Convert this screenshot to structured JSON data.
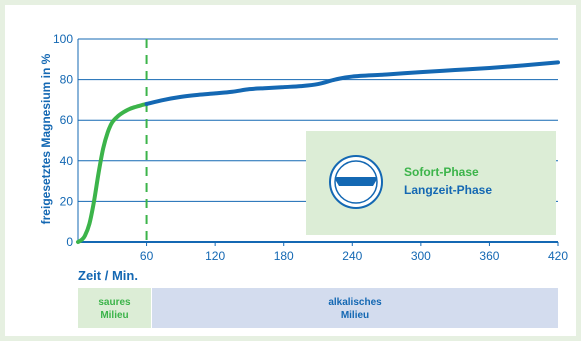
{
  "chart_data": {
    "type": "line",
    "ylabel": "freigesetztes Magnesium in %",
    "xlabel": "Zeit / Min.",
    "xlim": [
      0,
      420
    ],
    "ylim": [
      0,
      100
    ],
    "xticks": [
      "60",
      "120",
      "180",
      "240",
      "300",
      "360",
      "420"
    ],
    "yticks": [
      "0",
      "20",
      "40",
      "60",
      "80",
      "100"
    ],
    "grid": "horizontal",
    "reference_line_x": 60,
    "series": [
      {
        "name": "Sofort-Phase",
        "color": "#3cb44a",
        "x": [
          0,
          3,
          6,
          10,
          14,
          18,
          22,
          26,
          30,
          35,
          40,
          45,
          50,
          55,
          60
        ],
        "y": [
          0,
          1,
          3,
          9,
          20,
          34,
          46,
          54,
          59,
          62,
          64,
          65.5,
          66.5,
          67.3,
          68
        ]
      },
      {
        "name": "Langzeit-Phase",
        "color": "#1468b3",
        "x": [
          60,
          75,
          90,
          105,
          120,
          135,
          150,
          165,
          180,
          195,
          210,
          225,
          240,
          270,
          300,
          330,
          360,
          390,
          420
        ],
        "y": [
          68,
          70,
          71.5,
          72.5,
          73.2,
          74,
          75.3,
          75.8,
          76.3,
          76.8,
          77.8,
          80,
          81.5,
          82.5,
          83.7,
          84.7,
          85.7,
          87,
          88.5
        ]
      }
    ],
    "legend": {
      "position": "bottom-right",
      "items": [
        {
          "label": "Sofort-Phase",
          "color": "#3cb44a"
        },
        {
          "label": "Langzeit-Phase",
          "color": "#1468b3"
        }
      ]
    }
  },
  "bottom_bar": {
    "left": {
      "line1": "saures",
      "line2": "Milieu",
      "color": "#3cb44a",
      "bg": "#dcedd6"
    },
    "right": {
      "line1": "alkalisches",
      "line2": "Milieu",
      "color": "#1468b3",
      "bg": "#d3dcee"
    }
  },
  "colors": {
    "axis": "#1468b3",
    "grid": "#1468b3",
    "legend_bg": "#dcedd6",
    "background": "#e6f0e1"
  },
  "icon": {
    "name": "capsule-icon"
  }
}
